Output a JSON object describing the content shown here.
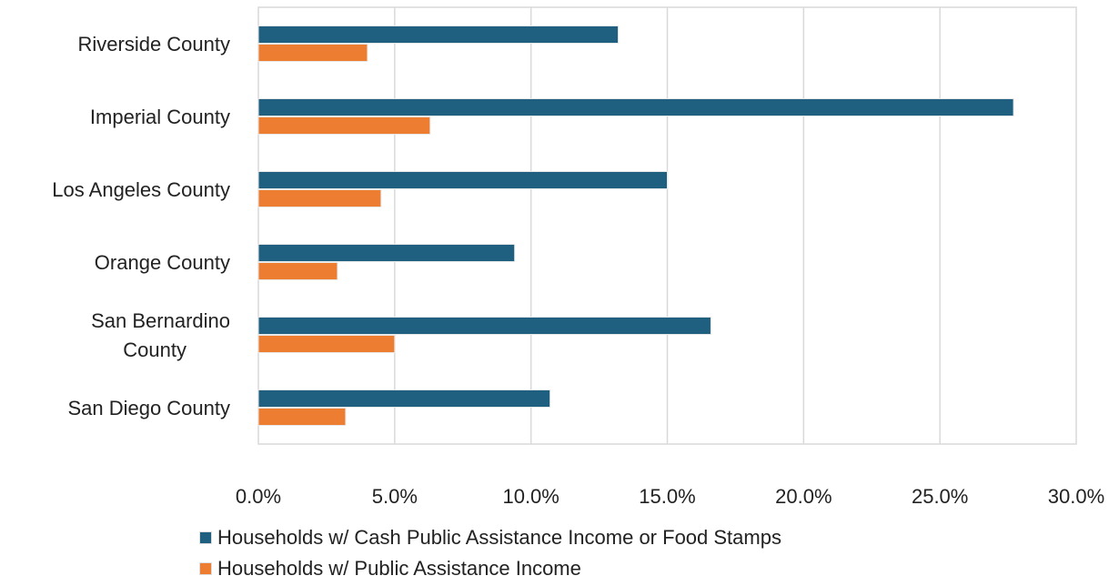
{
  "chart_data": {
    "type": "bar",
    "orientation": "horizontal",
    "categories": [
      "Riverside County",
      "Imperial County",
      "Los Angeles County",
      "Orange County",
      "San Bernardino County",
      "San Diego County"
    ],
    "category_lines": [
      [
        "Riverside County"
      ],
      [
        "Imperial County"
      ],
      [
        "Los Angeles County"
      ],
      [
        "Orange County"
      ],
      [
        "San Bernardino",
        "County"
      ],
      [
        "San Diego County"
      ]
    ],
    "series": [
      {
        "name": "Households w/ Cash Public Assistance Income or Food Stamps",
        "color": "#1f5f80",
        "values": [
          13.2,
          27.7,
          15.0,
          9.4,
          16.6,
          10.7
        ]
      },
      {
        "name": "Households w/ Public Assistance Income",
        "color": "#ed7d31",
        "values": [
          4.0,
          6.3,
          4.5,
          2.9,
          5.0,
          3.2
        ]
      }
    ],
    "xlim": [
      0,
      30
    ],
    "x_ticks": [
      "0.0%",
      "5.0%",
      "10.0%",
      "15.0%",
      "20.0%",
      "25.0%",
      "30.0%"
    ],
    "grid": true,
    "legend_position": "bottom"
  }
}
